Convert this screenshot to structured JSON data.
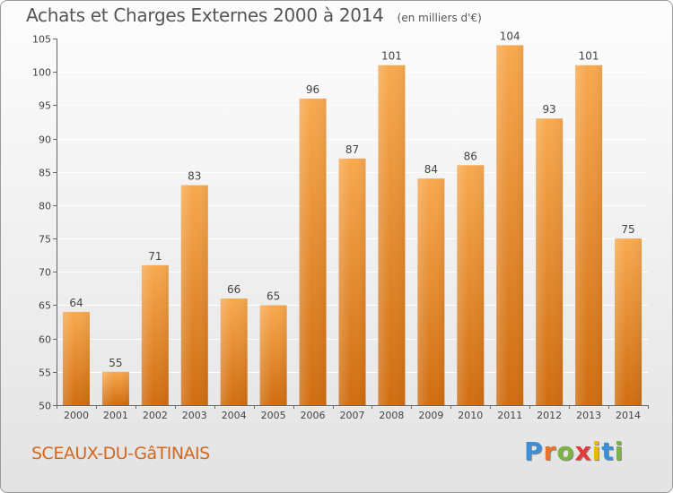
{
  "header": {
    "title": "Achats et Charges Externes 2000 à 2014",
    "unit": "(en milliers d'€)"
  },
  "footer": {
    "commune": "SCEAUX-DU-GâTINAIS",
    "brand": "Proxiti",
    "brand_letters": [
      "P",
      "r",
      "o",
      "x",
      "i",
      "t",
      "i"
    ],
    "brand_colors": [
      "#3a8fd8",
      "#e8732a",
      "#7cb342",
      "#e83a3a",
      "#f2b705",
      "#3a8fd8",
      "#7cb342"
    ]
  },
  "colors": {
    "bar_light": "#f8a94f",
    "bar_dark": "#d06d10",
    "grid": "#ffffff",
    "axis_text": "#444444",
    "title": "#555555",
    "commune": "#d2691e"
  },
  "chart_data": {
    "type": "bar",
    "title": "Achats et Charges Externes 2000 à 2014",
    "xlabel": "",
    "ylabel": "",
    "categories": [
      "2000",
      "2001",
      "2002",
      "2003",
      "2004",
      "2005",
      "2006",
      "2007",
      "2008",
      "2009",
      "2010",
      "2011",
      "2012",
      "2013",
      "2014"
    ],
    "values": [
      64,
      55,
      71,
      83,
      66,
      65,
      96,
      87,
      101,
      84,
      86,
      104,
      93,
      101,
      75
    ],
    "ylim": [
      50,
      105
    ],
    "yticks": [
      50,
      55,
      60,
      65,
      70,
      75,
      80,
      85,
      90,
      95,
      100,
      105
    ],
    "grid": true,
    "data_labels": true
  }
}
